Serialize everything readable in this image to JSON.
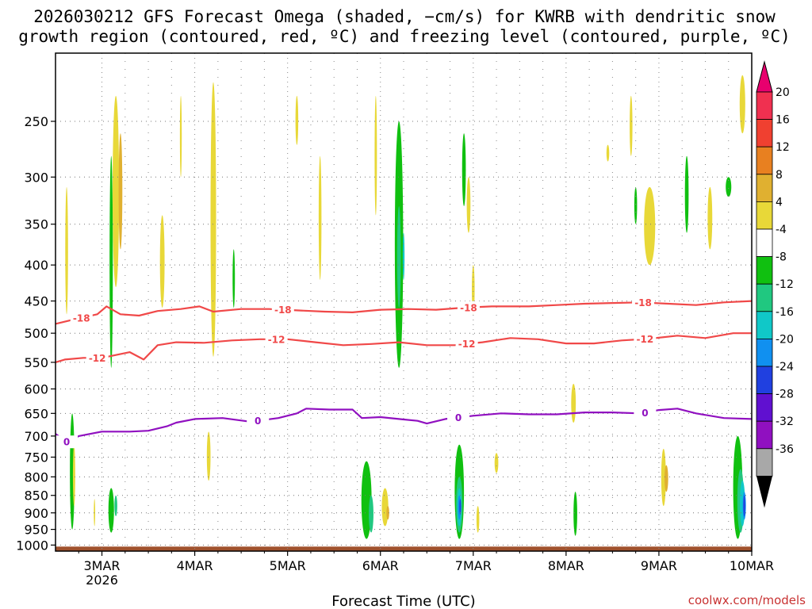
{
  "chart_data": {
    "type": "heatmap",
    "title_lines": [
      "2026030212 GFS Forecast Omega (shaded, −cm/s) for KWRB with dendritic snow",
      "growth region (contoured, red, ºC) and freezing level (contoured, purple, ºC)"
    ],
    "xlabel": "Forecast Time (UTC)",
    "x_ticks": [
      {
        "day": 3,
        "label": "3MAR",
        "sub": "2026"
      },
      {
        "day": 4,
        "label": "4MAR",
        "sub": ""
      },
      {
        "day": 5,
        "label": "5MAR",
        "sub": ""
      },
      {
        "day": 6,
        "label": "6MAR",
        "sub": ""
      },
      {
        "day": 7,
        "label": "7MAR",
        "sub": ""
      },
      {
        "day": 8,
        "label": "8MAR",
        "sub": ""
      },
      {
        "day": 9,
        "label": "9MAR",
        "sub": ""
      },
      {
        "day": 10,
        "label": "10MAR",
        "sub": ""
      }
    ],
    "xlim": [
      2.5,
      10.0
    ],
    "y_ticks": [
      250,
      300,
      350,
      400,
      450,
      500,
      550,
      600,
      650,
      700,
      750,
      800,
      850,
      900,
      950,
      1000
    ],
    "ylim_hpa": [
      200,
      1020
    ],
    "y_scale": "log",
    "grid": true,
    "colorbar": {
      "labels": [
        "20",
        "16",
        "12",
        "8",
        "4",
        "-4",
        "-8",
        "-12",
        "-16",
        "-20",
        "-24",
        "-28",
        "-32",
        "-36"
      ],
      "colors": [
        "#f03050",
        "#f04030",
        "#e88020",
        "#e0b030",
        "#e8d838",
        "#ffffff",
        "#10c010",
        "#20c880",
        "#10c8c8",
        "#1090f0",
        "#2040e0",
        "#6010d0",
        "#9010c0",
        "#a8a8a8"
      ],
      "top_arrow_color": "#e8006e",
      "bottom_arrow_color": "#000000"
    },
    "contours": [
      {
        "level": "-18",
        "color": "#f04848",
        "points": [
          [
            2.5,
            485
          ],
          [
            2.7,
            478
          ],
          [
            2.95,
            470
          ],
          [
            3.05,
            458
          ],
          [
            3.2,
            470
          ],
          [
            3.4,
            472
          ],
          [
            3.6,
            465
          ],
          [
            3.85,
            462
          ],
          [
            4.05,
            458
          ],
          [
            4.2,
            466
          ],
          [
            4.5,
            462
          ],
          [
            4.8,
            462
          ],
          [
            5.1,
            464
          ],
          [
            5.4,
            466
          ],
          [
            5.7,
            467
          ],
          [
            6.0,
            463
          ],
          [
            6.3,
            462
          ],
          [
            6.6,
            463
          ],
          [
            6.9,
            460
          ],
          [
            7.2,
            458
          ],
          [
            7.6,
            458
          ],
          [
            7.9,
            456
          ],
          [
            8.2,
            454
          ],
          [
            8.5,
            453
          ],
          [
            8.8,
            452
          ],
          [
            9.1,
            454
          ],
          [
            9.4,
            456
          ],
          [
            9.7,
            452
          ],
          [
            10.0,
            450
          ]
        ],
        "labels": [
          {
            "x": 2.78,
            "text": "-18"
          },
          {
            "x": 4.95,
            "text": "-18"
          },
          {
            "x": 6.95,
            "text": "-18"
          },
          {
            "x": 8.83,
            "text": "-18"
          }
        ]
      },
      {
        "level": "-12",
        "color": "#f04848",
        "points": [
          [
            2.5,
            550
          ],
          [
            2.6,
            545
          ],
          [
            2.8,
            542
          ],
          [
            3.0,
            542
          ],
          [
            3.15,
            537
          ],
          [
            3.3,
            532
          ],
          [
            3.45,
            545
          ],
          [
            3.6,
            520
          ],
          [
            3.8,
            515
          ],
          [
            4.1,
            516
          ],
          [
            4.4,
            512
          ],
          [
            4.7,
            510
          ],
          [
            5.0,
            510
          ],
          [
            5.3,
            515
          ],
          [
            5.6,
            520
          ],
          [
            5.9,
            518
          ],
          [
            6.2,
            515
          ],
          [
            6.5,
            520
          ],
          [
            6.8,
            520
          ],
          [
            7.1,
            515
          ],
          [
            7.4,
            508
          ],
          [
            7.7,
            510
          ],
          [
            8.0,
            517
          ],
          [
            8.3,
            517
          ],
          [
            8.6,
            512
          ],
          [
            8.9,
            509
          ],
          [
            9.2,
            504
          ],
          [
            9.5,
            508
          ],
          [
            9.8,
            500
          ],
          [
            10.0,
            500
          ]
        ],
        "labels": [
          {
            "x": 2.95,
            "text": "-12"
          },
          {
            "x": 4.88,
            "text": "-12"
          },
          {
            "x": 6.93,
            "text": "-12"
          },
          {
            "x": 8.85,
            "text": "-12"
          }
        ]
      },
      {
        "level": "0",
        "color": "#9010c0",
        "points": [
          [
            2.5,
            695
          ],
          [
            2.63,
            715
          ],
          [
            2.75,
            700
          ],
          [
            3.0,
            690
          ],
          [
            3.3,
            690
          ],
          [
            3.5,
            688
          ],
          [
            3.7,
            678
          ],
          [
            3.8,
            670
          ],
          [
            4.0,
            662
          ],
          [
            4.3,
            660
          ],
          [
            4.6,
            668
          ],
          [
            4.9,
            660
          ],
          [
            5.1,
            650
          ],
          [
            5.2,
            640
          ],
          [
            5.45,
            642
          ],
          [
            5.7,
            642
          ],
          [
            5.8,
            660
          ],
          [
            6.0,
            658
          ],
          [
            6.2,
            662
          ],
          [
            6.4,
            666
          ],
          [
            6.5,
            672
          ],
          [
            6.7,
            662
          ],
          [
            7.0,
            655
          ],
          [
            7.3,
            650
          ],
          [
            7.6,
            652
          ],
          [
            7.9,
            652
          ],
          [
            8.2,
            648
          ],
          [
            8.5,
            648
          ],
          [
            8.8,
            650
          ],
          [
            9.0,
            643
          ],
          [
            9.2,
            640
          ],
          [
            9.4,
            650
          ],
          [
            9.7,
            660
          ],
          [
            10.0,
            662
          ]
        ],
        "labels": [
          {
            "x": 2.62,
            "text": "0"
          },
          {
            "x": 4.68,
            "text": "0"
          },
          {
            "x": 6.84,
            "text": "0"
          },
          {
            "x": 8.85,
            "text": "0"
          }
        ]
      }
    ],
    "blobs": [
      {
        "x": 3.15,
        "p0": 230,
        "p1": 430,
        "w": 0.07,
        "color": "#e8d838"
      },
      {
        "x": 3.2,
        "p0": 260,
        "p1": 380,
        "w": 0.04,
        "color": "#e0b030"
      },
      {
        "x": 3.1,
        "p0": 280,
        "p1": 560,
        "w": 0.035,
        "color": "#10c010"
      },
      {
        "x": 2.62,
        "p0": 310,
        "p1": 470,
        "w": 0.03,
        "color": "#e8d838"
      },
      {
        "x": 3.65,
        "p0": 340,
        "p1": 460,
        "w": 0.05,
        "color": "#e8d838"
      },
      {
        "x": 4.2,
        "p0": 220,
        "p1": 540,
        "w": 0.06,
        "color": "#e8d838"
      },
      {
        "x": 4.42,
        "p0": 380,
        "p1": 460,
        "w": 0.025,
        "color": "#10c010"
      },
      {
        "x": 3.85,
        "p0": 230,
        "p1": 300,
        "w": 0.02,
        "color": "#e8d838"
      },
      {
        "x": 5.1,
        "p0": 230,
        "p1": 270,
        "w": 0.03,
        "color": "#e8d838"
      },
      {
        "x": 5.35,
        "p0": 280,
        "p1": 420,
        "w": 0.03,
        "color": "#e8d838"
      },
      {
        "x": 6.2,
        "p0": 250,
        "p1": 560,
        "w": 0.09,
        "color": "#10c010"
      },
      {
        "x": 6.2,
        "p0": 330,
        "p1": 460,
        "w": 0.04,
        "color": "#20c880"
      },
      {
        "x": 6.25,
        "p0": 360,
        "p1": 420,
        "w": 0.02,
        "color": "#10c8c8"
      },
      {
        "x": 5.95,
        "p0": 230,
        "p1": 340,
        "w": 0.025,
        "color": "#e8d838"
      },
      {
        "x": 6.9,
        "p0": 260,
        "p1": 330,
        "w": 0.04,
        "color": "#10c010"
      },
      {
        "x": 6.95,
        "p0": 300,
        "p1": 360,
        "w": 0.04,
        "color": "#e8d838"
      },
      {
        "x": 7.0,
        "p0": 400,
        "p1": 470,
        "w": 0.03,
        "color": "#e8d838"
      },
      {
        "x": 8.7,
        "p0": 230,
        "p1": 280,
        "w": 0.03,
        "color": "#e8d838"
      },
      {
        "x": 8.9,
        "p0": 310,
        "p1": 400,
        "w": 0.12,
        "color": "#e8d838"
      },
      {
        "x": 8.75,
        "p0": 310,
        "p1": 350,
        "w": 0.03,
        "color": "#10c010"
      },
      {
        "x": 9.3,
        "p0": 280,
        "p1": 360,
        "w": 0.04,
        "color": "#10c010"
      },
      {
        "x": 9.55,
        "p0": 310,
        "p1": 380,
        "w": 0.05,
        "color": "#e8d838"
      },
      {
        "x": 9.75,
        "p0": 300,
        "p1": 320,
        "w": 0.06,
        "color": "#10c010"
      },
      {
        "x": 9.9,
        "p0": 215,
        "p1": 260,
        "w": 0.06,
        "color": "#e8d838"
      },
      {
        "x": 8.45,
        "p0": 270,
        "p1": 285,
        "w": 0.03,
        "color": "#e8d838"
      },
      {
        "x": 2.68,
        "p0": 650,
        "p1": 950,
        "w": 0.05,
        "color": "#10c010"
      },
      {
        "x": 2.7,
        "p0": 720,
        "p1": 880,
        "w": 0.025,
        "color": "#e8d838"
      },
      {
        "x": 3.1,
        "p0": 830,
        "p1": 960,
        "w": 0.06,
        "color": "#10c010"
      },
      {
        "x": 3.15,
        "p0": 850,
        "p1": 910,
        "w": 0.03,
        "color": "#20c880"
      },
      {
        "x": 2.92,
        "p0": 860,
        "p1": 940,
        "w": 0.015,
        "color": "#e8d838"
      },
      {
        "x": 4.15,
        "p0": 690,
        "p1": 810,
        "w": 0.04,
        "color": "#e8d838"
      },
      {
        "x": 5.85,
        "p0": 760,
        "p1": 980,
        "w": 0.11,
        "color": "#10c010"
      },
      {
        "x": 5.9,
        "p0": 850,
        "p1": 960,
        "w": 0.05,
        "color": "#20c880"
      },
      {
        "x": 6.05,
        "p0": 830,
        "p1": 940,
        "w": 0.07,
        "color": "#e8d838"
      },
      {
        "x": 6.08,
        "p0": 880,
        "p1": 920,
        "w": 0.03,
        "color": "#e0b030"
      },
      {
        "x": 6.85,
        "p0": 720,
        "p1": 980,
        "w": 0.1,
        "color": "#10c010"
      },
      {
        "x": 6.85,
        "p0": 800,
        "p1": 960,
        "w": 0.07,
        "color": "#20c880"
      },
      {
        "x": 6.85,
        "p0": 830,
        "p1": 940,
        "w": 0.045,
        "color": "#10c8c8"
      },
      {
        "x": 6.85,
        "p0": 850,
        "p1": 920,
        "w": 0.03,
        "color": "#1090f0"
      },
      {
        "x": 6.86,
        "p0": 860,
        "p1": 905,
        "w": 0.018,
        "color": "#2040e0"
      },
      {
        "x": 7.05,
        "p0": 880,
        "p1": 960,
        "w": 0.03,
        "color": "#e8d838"
      },
      {
        "x": 7.25,
        "p0": 740,
        "p1": 790,
        "w": 0.04,
        "color": "#e8d838"
      },
      {
        "x": 8.08,
        "p0": 590,
        "p1": 670,
        "w": 0.05,
        "color": "#e8d838"
      },
      {
        "x": 8.1,
        "p0": 840,
        "p1": 970,
        "w": 0.04,
        "color": "#10c010"
      },
      {
        "x": 9.05,
        "p0": 730,
        "p1": 880,
        "w": 0.05,
        "color": "#e8d838"
      },
      {
        "x": 9.08,
        "p0": 770,
        "p1": 840,
        "w": 0.04,
        "color": "#e0b030"
      },
      {
        "x": 9.85,
        "p0": 700,
        "p1": 980,
        "w": 0.1,
        "color": "#10c010"
      },
      {
        "x": 9.88,
        "p0": 780,
        "p1": 960,
        "w": 0.07,
        "color": "#20c880"
      },
      {
        "x": 9.9,
        "p0": 810,
        "p1": 940,
        "w": 0.055,
        "color": "#10c8c8"
      },
      {
        "x": 9.92,
        "p0": 840,
        "p1": 920,
        "w": 0.035,
        "color": "#1090f0"
      },
      {
        "x": 9.92,
        "p0": 850,
        "p1": 910,
        "w": 0.02,
        "color": "#2040e0"
      }
    ],
    "terrain_color": "#a0522d",
    "watermark": {
      "text": "coolwx.com/models",
      "color": "#c83232"
    }
  }
}
